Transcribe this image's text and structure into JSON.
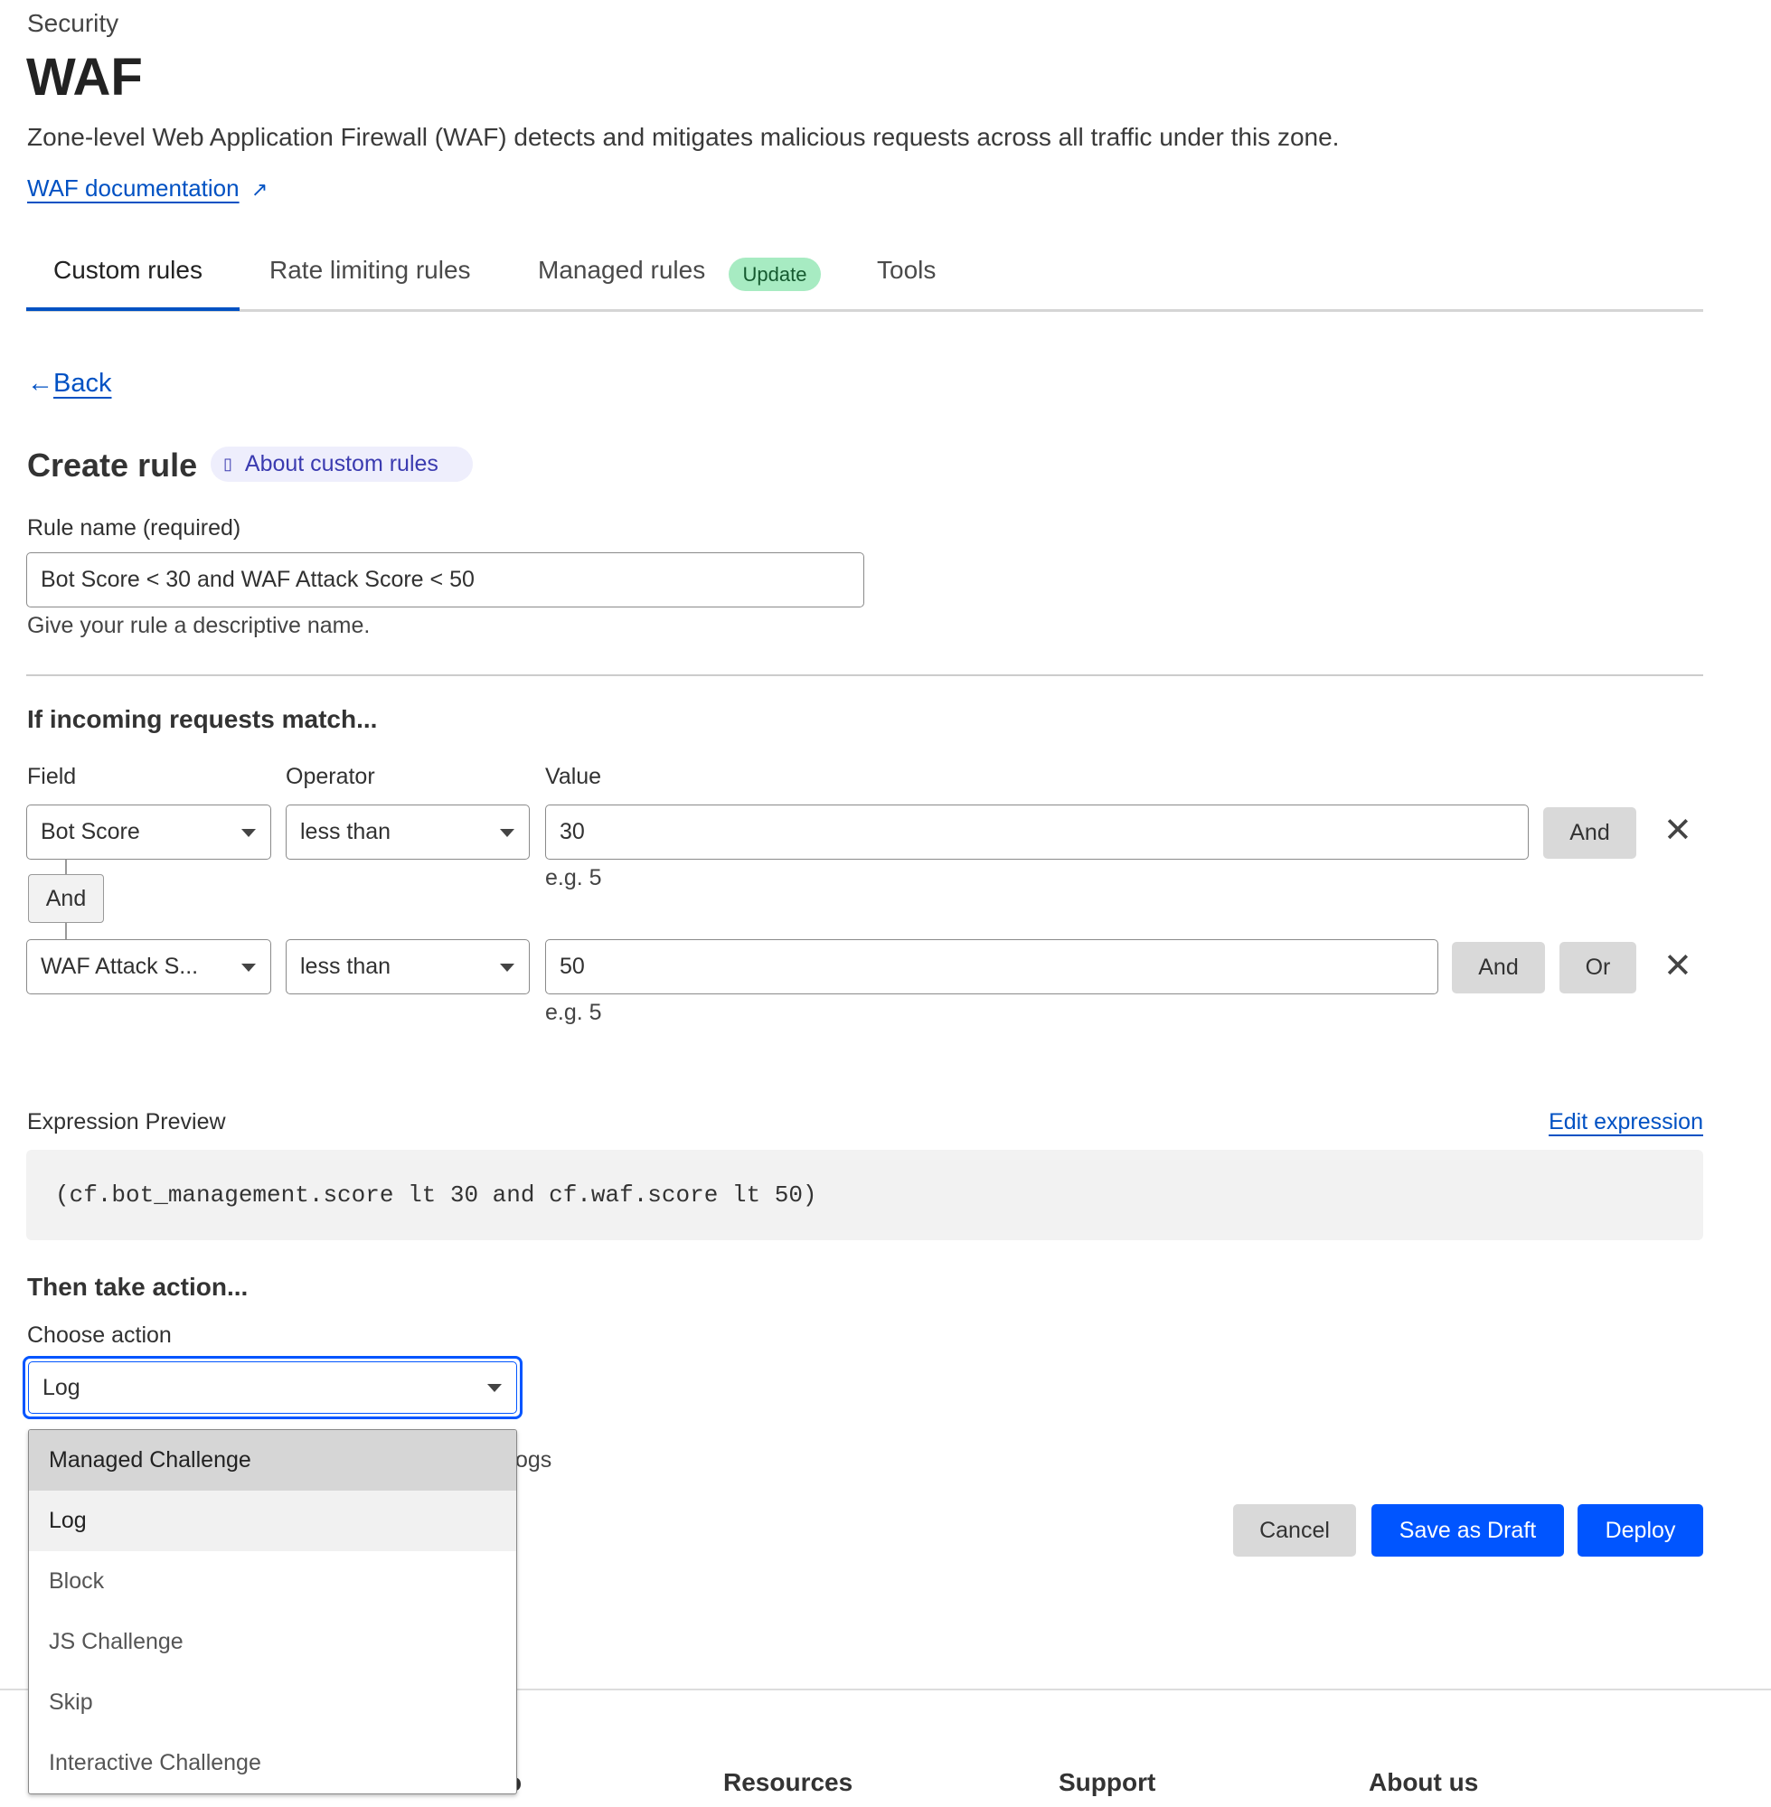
{
  "header": {
    "section": "Security",
    "title": "WAF",
    "description": "Zone-level Web Application Firewall (WAF) detects and mitigates malicious requests across all traffic under this zone.",
    "doc_link": "WAF documentation"
  },
  "tabs": [
    {
      "label": "Custom rules",
      "active": true
    },
    {
      "label": "Rate limiting rules"
    },
    {
      "label": "Managed rules",
      "badge": "Update"
    },
    {
      "label": "Tools"
    }
  ],
  "back": "Back",
  "create": {
    "title": "Create rule",
    "about": "About custom rules"
  },
  "rule_name": {
    "label": "Rule name (required)",
    "value": "Bot Score < 30 and WAF Attack Score < 50",
    "helper": "Give your rule a descriptive name."
  },
  "match": {
    "heading": "If incoming requests match...",
    "field_label": "Field",
    "operator_label": "Operator",
    "value_label": "Value",
    "rows": [
      {
        "field": "Bot Score",
        "operator": "less than",
        "value": "30",
        "hint": "e.g. 5",
        "and": "And"
      },
      {
        "field": "WAF Attack S...",
        "operator": "less than",
        "value": "50",
        "hint": "e.g. 5",
        "and": "And",
        "or": "Or"
      }
    ],
    "connector": "And"
  },
  "expression": {
    "label": "Expression Preview",
    "edit": "Edit expression",
    "code": "(cf.bot_management.score lt 30 and cf.waf.score lt 50)"
  },
  "action": {
    "heading": "Then take action...",
    "label": "Choose action",
    "selected": "Log",
    "hidden_hint_fragment": "ogs",
    "options": [
      "Managed Challenge",
      "Log",
      "Block",
      "JS Challenge",
      "Skip",
      "Interactive Challenge"
    ]
  },
  "buttons": {
    "cancel": "Cancel",
    "draft": "Save as Draft",
    "deploy": "Deploy"
  },
  "footer": {
    "col1_fragment": "o",
    "resources": "Resources",
    "support": "Support",
    "about": "About us"
  },
  "colors": {
    "accent": "#0055ff",
    "link": "#0051c3",
    "badge": "#a7ebc2",
    "focus": "#0055ff"
  }
}
